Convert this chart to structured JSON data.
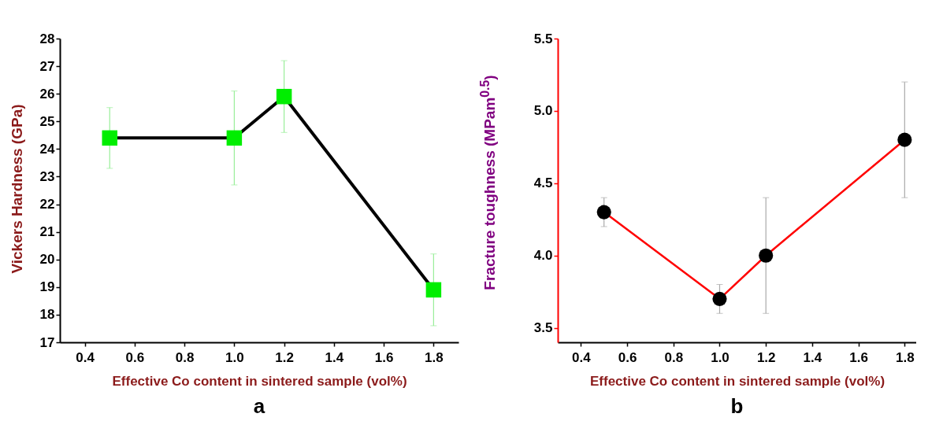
{
  "chart_data": [
    {
      "type": "line",
      "xlabel": "Effective Co content in sintered sample (vol%)",
      "ylabel": "Vickers Hardness (GPa)",
      "annotations": [
        "a"
      ],
      "x": [
        0.5,
        1.0,
        1.2,
        1.8
      ],
      "series": [
        {
          "color": "#000000",
          "values": [
            24.4,
            24.4,
            25.9,
            18.9
          ],
          "errors": [
            [
              23.3,
              25.5
            ],
            [
              22.7,
              26.1
            ],
            [
              24.6,
              27.2
            ],
            [
              17.6,
              20.2
            ]
          ]
        }
      ],
      "marker": "square",
      "line_style": "solid",
      "grid": false,
      "xlim": [
        0.3,
        1.9
      ],
      "xticks": [
        0.4,
        0.6,
        0.8,
        {
          "value": 1,
          "label": "1.0"
        },
        1.2,
        1.4,
        1.6,
        1.8
      ],
      "ylim": [
        17,
        28
      ],
      "yticks": [
        17,
        18,
        19,
        20,
        21,
        22,
        23,
        24,
        25,
        26,
        27,
        28
      ]
    },
    {
      "type": "line",
      "xlabel": "Effective Co content in sintered sample (vol%)",
      "ylabel": "Fracture toughness (MPam$^{0.5}$)",
      "annotations": [
        "b"
      ],
      "x": [
        0.5,
        1.0,
        1.2,
        1.8
      ],
      "series": [
        {
          "color": "#ff0000",
          "values": [
            4.3,
            3.7,
            4.0,
            4.8
          ],
          "errors": [
            [
              4.2,
              4.4
            ],
            [
              3.6,
              3.8
            ],
            [
              3.6,
              4.4
            ],
            [
              4.4,
              5.2
            ]
          ]
        }
      ],
      "marker": "circle",
      "line_style": "solid",
      "grid": false,
      "xlim": [
        0.3,
        1.85
      ],
      "xticks": [
        0.4,
        0.6,
        0.8,
        {
          "value": 1,
          "label": "1.0"
        },
        1.2,
        1.4,
        1.6,
        1.8
      ],
      "ylim": [
        3.4,
        5.5
      ],
      "yticks": [
        3.5,
        {
          "value": 4,
          "label": "4.0"
        },
        4.5,
        {
          "value": 5,
          "label": "5.0"
        },
        5.5
      ]
    }
  ]
}
